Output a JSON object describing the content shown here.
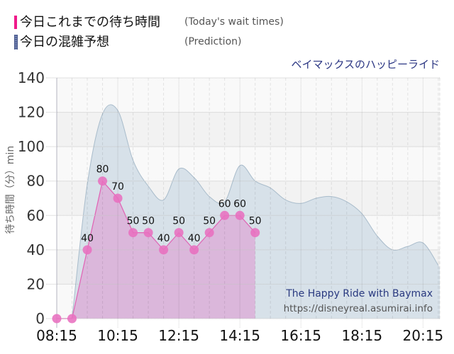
{
  "legend": {
    "actual": {
      "label_ja": "今日これまでの待ち時間",
      "label_en": "(Today's wait times)",
      "color": "#f0198a"
    },
    "prediction": {
      "label_ja": "今日の混雑予想",
      "label_en": "(Prediction)",
      "color": "#5b6a99"
    }
  },
  "attraction_title": "ベイマックスのハッピーライド",
  "watermark": {
    "title": "The Happy Ride with Baymax",
    "url": "https://disneyreal.asumirai.info"
  },
  "colors": {
    "band_light": "#f9f9f9",
    "band_dark": "#f2f2f2",
    "prediction_fill": "#d7e1e9",
    "prediction_stroke": "#a9bccb",
    "actual_fill": "#dbb3d9",
    "actual_line": "#e063b4",
    "marker": "#e86fbf",
    "title": "#2b3683"
  },
  "chart_data": {
    "type": "area",
    "title": "ベイマックスのハッピーライド",
    "xlabel": "",
    "ylabel": "待ち時間（分）min",
    "ylim": [
      0,
      140
    ],
    "xlim": [
      "08:15",
      "20:48"
    ],
    "yticks": [
      0,
      20,
      40,
      60,
      80,
      100,
      120,
      140
    ],
    "xticks": [
      "08:15",
      "10:15",
      "12:15",
      "14:15",
      "16:15",
      "18:15",
      "20:15"
    ],
    "grid": {
      "on": true,
      "x_minor_step_minutes": 30,
      "alternating_bands": true
    },
    "legend_position": "top-left",
    "series": [
      {
        "name": "今日これまでの待ち時間",
        "name_en": "(Today's wait times)",
        "kind": "line-area-markers",
        "data_labels": true,
        "x": [
          "08:15",
          "08:45",
          "09:15",
          "09:45",
          "10:15",
          "10:45",
          "11:15",
          "11:45",
          "12:15",
          "12:45",
          "13:15",
          "13:45",
          "14:15",
          "14:45"
        ],
        "values": [
          0,
          0,
          40,
          80,
          70,
          50,
          50,
          40,
          50,
          40,
          50,
          60,
          60,
          50
        ]
      },
      {
        "name": "今日の混雑予想",
        "name_en": "(Prediction)",
        "kind": "smooth-area",
        "data_labels": false,
        "x": [
          "08:45",
          "09:15",
          "09:45",
          "10:15",
          "10:45",
          "11:15",
          "11:45",
          "12:15",
          "12:45",
          "13:15",
          "13:45",
          "14:15",
          "14:45",
          "15:15",
          "15:45",
          "16:15",
          "16:45",
          "17:15",
          "17:45",
          "18:15",
          "18:45",
          "19:15",
          "19:45",
          "20:15",
          "20:45"
        ],
        "values": [
          0,
          78,
          119,
          121,
          92,
          77,
          69,
          87,
          82,
          71,
          68,
          89,
          80,
          76,
          69,
          67,
          70,
          71,
          68,
          61,
          48,
          40,
          42,
          44,
          31
        ]
      }
    ]
  }
}
